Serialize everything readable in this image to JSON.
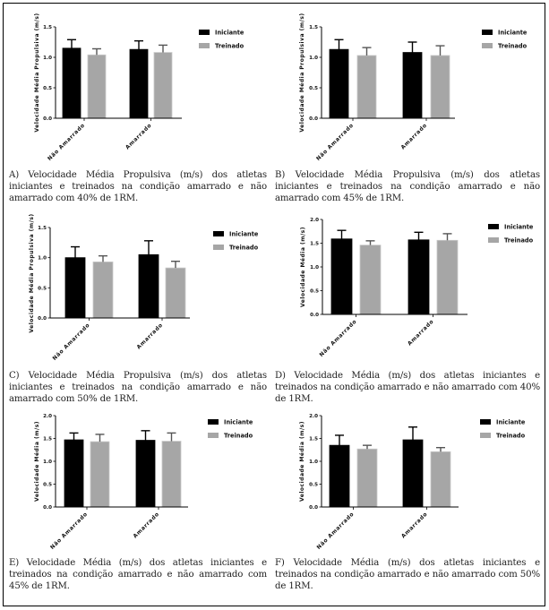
{
  "figure": {
    "legend": [
      "Iniciante",
      "Treinado"
    ],
    "colors": {
      "Iniciante": "#000000",
      "Treinado": "#a6a6a6"
    }
  },
  "chart_data": [
    {
      "id": "A",
      "type": "bar",
      "ylabel": "Velocidade Média Propulsiva (m/s)",
      "ylim": [
        0,
        1.5
      ],
      "yticks": [
        "0.0",
        "0.5",
        "1.0",
        "1.5"
      ],
      "categories": [
        "Não Amarrado",
        "Amarrado"
      ],
      "series": [
        {
          "name": "Iniciante",
          "values": [
            1.15,
            1.13
          ],
          "error_upper": [
            1.29,
            1.27
          ]
        },
        {
          "name": "Treinado",
          "values": [
            1.04,
            1.08
          ],
          "error_upper": [
            1.14,
            1.2
          ]
        }
      ],
      "legend": "top-right",
      "caption": "A) Velocidade Média Propulsiva (m/s) dos atletas iniciantes e treinados na condição amarrado e não amarrado com 40% de 1RM."
    },
    {
      "id": "B",
      "type": "bar",
      "ylabel": "Velocidade Média Propulsiva (m/s)",
      "ylim": [
        0,
        1.5
      ],
      "yticks": [
        "0.0",
        "0.5",
        "1.0",
        "1.5"
      ],
      "categories": [
        "Não Amarrado",
        "Amarrado"
      ],
      "series": [
        {
          "name": "Iniciante",
          "values": [
            1.13,
            1.08
          ],
          "error_upper": [
            1.29,
            1.25
          ]
        },
        {
          "name": "Treinado",
          "values": [
            1.03,
            1.03
          ],
          "error_upper": [
            1.16,
            1.19
          ]
        }
      ],
      "legend": "top-right",
      "caption": "B) Velocidade Média Propulsiva (m/s) dos atletas iniciantes e treinados na condição amarrado e não amarrado com 45% de 1RM."
    },
    {
      "id": "C",
      "type": "bar",
      "ylabel": "Velocidade Média Propulsiva (m/s)",
      "ylim": [
        0,
        1.5
      ],
      "yticks": [
        "0.0",
        "0.5",
        "1.0",
        "1.5"
      ],
      "categories": [
        "Não Amarrado",
        "Amarrado"
      ],
      "series": [
        {
          "name": "Iniciante",
          "values": [
            1.0,
            1.05
          ],
          "error_upper": [
            1.18,
            1.28
          ]
        },
        {
          "name": "Treinado",
          "values": [
            0.93,
            0.83
          ],
          "error_upper": [
            1.03,
            0.94
          ]
        }
      ],
      "legend": "top-right",
      "caption": "C) Velocidade Média Propulsiva (m/s) dos atletas iniciantes e treinados na condição amarrado e não amarrado com 50% de 1RM."
    },
    {
      "id": "D",
      "type": "bar",
      "ylabel": "Velocidade Média (m/s)",
      "ylim": [
        0,
        2.0
      ],
      "yticks": [
        "0.0",
        "0.5",
        "1.0",
        "1.5",
        "2.0"
      ],
      "categories": [
        "Não Amarrado",
        "Amarrado"
      ],
      "series": [
        {
          "name": "Iniciante",
          "values": [
            1.59,
            1.57
          ],
          "error_upper": [
            1.77,
            1.73
          ]
        },
        {
          "name": "Treinado",
          "values": [
            1.46,
            1.56
          ],
          "error_upper": [
            1.55,
            1.7
          ]
        }
      ],
      "legend": "top-right",
      "caption": "D) Velocidade Média (m/s) dos atletas iniciantes e treinados na condição amarrado e não amarrado com 40% de 1RM."
    },
    {
      "id": "E",
      "type": "bar",
      "ylabel": "Velocidade Média (m/s)",
      "ylim": [
        0,
        2.0
      ],
      "yticks": [
        "0.0",
        "0.5",
        "1.0",
        "1.5",
        "2.0"
      ],
      "categories": [
        "Não Amarrado",
        "Amarrado"
      ],
      "series": [
        {
          "name": "Iniciante",
          "values": [
            1.47,
            1.46
          ],
          "error_upper": [
            1.62,
            1.67
          ]
        },
        {
          "name": "Treinado",
          "values": [
            1.43,
            1.44
          ],
          "error_upper": [
            1.59,
            1.62
          ]
        }
      ],
      "legend": "top-right",
      "caption": "E) Velocidade Média (m/s) dos atletas iniciantes e treinados na condição amarrado e não amarrado com 45% de 1RM."
    },
    {
      "id": "F",
      "type": "bar",
      "ylabel": "Velocidade Média (m/s)",
      "ylim": [
        0,
        2.0
      ],
      "yticks": [
        "0.0",
        "0.5",
        "1.0",
        "1.5",
        "2.0"
      ],
      "categories": [
        "Não Amarrado",
        "Amarrado"
      ],
      "series": [
        {
          "name": "Iniciante",
          "values": [
            1.35,
            1.47
          ],
          "error_upper": [
            1.57,
            1.75
          ]
        },
        {
          "name": "Treinado",
          "values": [
            1.27,
            1.21
          ],
          "error_upper": [
            1.35,
            1.3
          ]
        }
      ],
      "legend": "top-right",
      "caption": "F) Velocidade Média (m/s) dos atletas iniciantes e treinados na condição amarrado e não amarrado com 50% de 1RM."
    }
  ]
}
